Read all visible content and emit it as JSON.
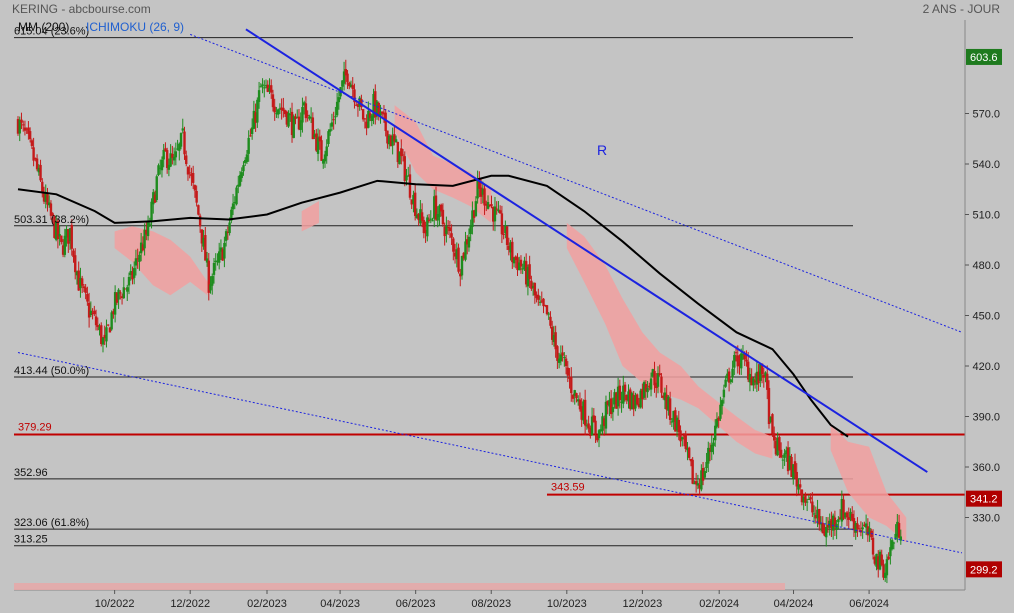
{
  "header": {
    "title": "KERING - abcbourse.com",
    "period": "2 ANS - JOUR",
    "indicator_ma": "MM (200)",
    "indicator_ichimoku": "ICHIMOKU (26, 9)"
  },
  "chart_data": {
    "type": "candlestick",
    "ylim": [
      290,
      625
    ],
    "y_ticks": [
      330,
      360,
      390,
      420,
      450,
      480,
      510,
      540,
      570
    ],
    "y_tick_labels": [
      "330.0",
      "360.0",
      "390.0",
      "420.0",
      "450.0",
      "480.0",
      "510.0",
      "540.0",
      "570.0"
    ],
    "x_labels": [
      "10/2022",
      "12/2022",
      "02/2023",
      "04/2023",
      "06/2023",
      "08/2023",
      "10/2023",
      "12/2023",
      "02/2024",
      "04/2024",
      "06/2024"
    ],
    "annotation_r": "R",
    "fib_levels": [
      {
        "value": 615.04,
        "label": "615.04  (23.6%)"
      },
      {
        "value": 503.31,
        "label": "503.31  (38.2%)"
      },
      {
        "value": 413.44,
        "label": "413.44  (50.0%)"
      },
      {
        "value": 352.96,
        "label": "352.96"
      },
      {
        "value": 323.06,
        "label": "323.06  (61.8%)"
      },
      {
        "value": 313.25,
        "label": "313.25"
      }
    ],
    "red_levels": [
      {
        "value": 379.29,
        "label": "379.29"
      },
      {
        "value": 343.59,
        "label": "343.59"
      }
    ],
    "price_badges": [
      {
        "value": 603.6,
        "label": "603.6",
        "color": "#1e7a1e"
      },
      {
        "value": 341.2,
        "label": "341.2",
        "color": "#b00000"
      },
      {
        "value": 299.2,
        "label": "299.2",
        "color": "#b00000"
      }
    ],
    "close_series": [
      {
        "d": "2022-07-15",
        "v": 565
      },
      {
        "d": "2022-07-22",
        "v": 555
      },
      {
        "d": "2022-07-29",
        "v": 540
      },
      {
        "d": "2022-08-05",
        "v": 520
      },
      {
        "d": "2022-08-12",
        "v": 505
      },
      {
        "d": "2022-08-19",
        "v": 490
      },
      {
        "d": "2022-08-26",
        "v": 500
      },
      {
        "d": "2022-09-02",
        "v": 470
      },
      {
        "d": "2022-09-09",
        "v": 455
      },
      {
        "d": "2022-09-16",
        "v": 445
      },
      {
        "d": "2022-09-23",
        "v": 432
      },
      {
        "d": "2022-09-30",
        "v": 455
      },
      {
        "d": "2022-10-07",
        "v": 465
      },
      {
        "d": "2022-10-14",
        "v": 470
      },
      {
        "d": "2022-10-21",
        "v": 488
      },
      {
        "d": "2022-10-28",
        "v": 500
      },
      {
        "d": "2022-11-04",
        "v": 530
      },
      {
        "d": "2022-11-11",
        "v": 545
      },
      {
        "d": "2022-11-18",
        "v": 540
      },
      {
        "d": "2022-11-25",
        "v": 555
      },
      {
        "d": "2022-12-02",
        "v": 530
      },
      {
        "d": "2022-12-09",
        "v": 505
      },
      {
        "d": "2022-12-16",
        "v": 470
      },
      {
        "d": "2022-12-23",
        "v": 480
      },
      {
        "d": "2022-12-30",
        "v": 495
      },
      {
        "d": "2023-01-06",
        "v": 520
      },
      {
        "d": "2023-01-13",
        "v": 545
      },
      {
        "d": "2023-01-20",
        "v": 560
      },
      {
        "d": "2023-01-27",
        "v": 585
      },
      {
        "d": "2023-02-03",
        "v": 580
      },
      {
        "d": "2023-02-10",
        "v": 575
      },
      {
        "d": "2023-02-17",
        "v": 570
      },
      {
        "d": "2023-02-24",
        "v": 560
      },
      {
        "d": "2023-03-03",
        "v": 575
      },
      {
        "d": "2023-03-10",
        "v": 560
      },
      {
        "d": "2023-03-17",
        "v": 545
      },
      {
        "d": "2023-03-24",
        "v": 560
      },
      {
        "d": "2023-03-31",
        "v": 580
      },
      {
        "d": "2023-04-07",
        "v": 595
      },
      {
        "d": "2023-04-14",
        "v": 580
      },
      {
        "d": "2023-04-21",
        "v": 565
      },
      {
        "d": "2023-04-28",
        "v": 575
      },
      {
        "d": "2023-05-05",
        "v": 565
      },
      {
        "d": "2023-05-12",
        "v": 555
      },
      {
        "d": "2023-05-19",
        "v": 545
      },
      {
        "d": "2023-05-26",
        "v": 530
      },
      {
        "d": "2023-06-02",
        "v": 512
      },
      {
        "d": "2023-06-09",
        "v": 500
      },
      {
        "d": "2023-06-16",
        "v": 515
      },
      {
        "d": "2023-06-23",
        "v": 505
      },
      {
        "d": "2023-06-30",
        "v": 495
      },
      {
        "d": "2023-07-07",
        "v": 480
      },
      {
        "d": "2023-07-14",
        "v": 500
      },
      {
        "d": "2023-07-21",
        "v": 525
      },
      {
        "d": "2023-07-28",
        "v": 520
      },
      {
        "d": "2023-08-04",
        "v": 510
      },
      {
        "d": "2023-08-11",
        "v": 500
      },
      {
        "d": "2023-08-18",
        "v": 485
      },
      {
        "d": "2023-08-25",
        "v": 480
      },
      {
        "d": "2023-09-01",
        "v": 470
      },
      {
        "d": "2023-09-08",
        "v": 455
      },
      {
        "d": "2023-09-15",
        "v": 450
      },
      {
        "d": "2023-09-22",
        "v": 430
      },
      {
        "d": "2023-09-29",
        "v": 420
      },
      {
        "d": "2023-10-06",
        "v": 405
      },
      {
        "d": "2023-10-13",
        "v": 395
      },
      {
        "d": "2023-10-20",
        "v": 385
      },
      {
        "d": "2023-10-27",
        "v": 380
      },
      {
        "d": "2023-11-03",
        "v": 395
      },
      {
        "d": "2023-11-10",
        "v": 400
      },
      {
        "d": "2023-11-17",
        "v": 405
      },
      {
        "d": "2023-11-24",
        "v": 398
      },
      {
        "d": "2023-12-01",
        "v": 405
      },
      {
        "d": "2023-12-08",
        "v": 415
      },
      {
        "d": "2023-12-15",
        "v": 410
      },
      {
        "d": "2023-12-22",
        "v": 395
      },
      {
        "d": "2023-12-29",
        "v": 385
      },
      {
        "d": "2024-01-05",
        "v": 368
      },
      {
        "d": "2024-01-12",
        "v": 350
      },
      {
        "d": "2024-01-19",
        "v": 355
      },
      {
        "d": "2024-01-26",
        "v": 375
      },
      {
        "d": "2024-02-02",
        "v": 395
      },
      {
        "d": "2024-02-09",
        "v": 415
      },
      {
        "d": "2024-02-16",
        "v": 425
      },
      {
        "d": "2024-02-23",
        "v": 420
      },
      {
        "d": "2024-03-01",
        "v": 410
      },
      {
        "d": "2024-03-08",
        "v": 418
      },
      {
        "d": "2024-03-15",
        "v": 375
      },
      {
        "d": "2024-03-22",
        "v": 368
      },
      {
        "d": "2024-03-29",
        "v": 362
      },
      {
        "d": "2024-04-05",
        "v": 350
      },
      {
        "d": "2024-04-12",
        "v": 340
      },
      {
        "d": "2024-04-19",
        "v": 330
      },
      {
        "d": "2024-04-26",
        "v": 322
      },
      {
        "d": "2024-05-03",
        "v": 328
      },
      {
        "d": "2024-05-10",
        "v": 335
      },
      {
        "d": "2024-05-17",
        "v": 330
      },
      {
        "d": "2024-05-24",
        "v": 325
      },
      {
        "d": "2024-05-31",
        "v": 320
      },
      {
        "d": "2024-06-07",
        "v": 305
      },
      {
        "d": "2024-06-14",
        "v": 300
      },
      {
        "d": "2024-06-21",
        "v": 318
      },
      {
        "d": "2024-06-28",
        "v": 327
      }
    ],
    "ma200": [
      {
        "d": "2022-07-15",
        "v": 525
      },
      {
        "d": "2022-08-15",
        "v": 522
      },
      {
        "d": "2022-09-15",
        "v": 512
      },
      {
        "d": "2022-10-01",
        "v": 505
      },
      {
        "d": "2022-11-01",
        "v": 506
      },
      {
        "d": "2022-12-01",
        "v": 508
      },
      {
        "d": "2023-01-01",
        "v": 507
      },
      {
        "d": "2023-02-01",
        "v": 510
      },
      {
        "d": "2023-03-01",
        "v": 517
      },
      {
        "d": "2023-04-01",
        "v": 523
      },
      {
        "d": "2023-05-01",
        "v": 530
      },
      {
        "d": "2023-06-01",
        "v": 528
      },
      {
        "d": "2023-07-01",
        "v": 527
      },
      {
        "d": "2023-08-01",
        "v": 533
      },
      {
        "d": "2023-08-15",
        "v": 533
      },
      {
        "d": "2023-09-15",
        "v": 527
      },
      {
        "d": "2023-10-15",
        "v": 512
      },
      {
        "d": "2023-11-15",
        "v": 494
      },
      {
        "d": "2023-12-15",
        "v": 475
      },
      {
        "d": "2024-01-15",
        "v": 457
      },
      {
        "d": "2024-02-15",
        "v": 440
      },
      {
        "d": "2024-03-15",
        "v": 430
      },
      {
        "d": "2024-04-01",
        "v": 415
      },
      {
        "d": "2024-04-15",
        "v": 400
      },
      {
        "d": "2024-05-01",
        "v": 385
      },
      {
        "d": "2024-05-15",
        "v": 378
      }
    ],
    "cloud": [
      {
        "d": "2022-10-01",
        "hi": 500,
        "lo": 490
      },
      {
        "d": "2022-10-15",
        "hi": 503,
        "lo": 482
      },
      {
        "d": "2022-11-01",
        "hi": 500,
        "lo": 468
      },
      {
        "d": "2022-11-15",
        "hi": 495,
        "lo": 462
      },
      {
        "d": "2022-12-01",
        "hi": 485,
        "lo": 470
      },
      {
        "d": "2022-12-15",
        "hi": 470,
        "lo": 462
      },
      {
        "d": "2023-03-01",
        "hi": 512,
        "lo": 500
      },
      {
        "d": "2023-03-15",
        "hi": 518,
        "lo": 505
      },
      {
        "d": "2023-05-15",
        "hi": 575,
        "lo": 560
      },
      {
        "d": "2023-06-01",
        "hi": 565,
        "lo": 535
      },
      {
        "d": "2023-06-15",
        "hi": 545,
        "lo": 525
      },
      {
        "d": "2023-07-01",
        "hi": 540,
        "lo": 520
      },
      {
        "d": "2023-07-15",
        "hi": 535,
        "lo": 515
      },
      {
        "d": "2023-08-01",
        "hi": 525,
        "lo": 505
      },
      {
        "d": "2023-10-01",
        "hi": 505,
        "lo": 490
      },
      {
        "d": "2023-10-15",
        "hi": 497,
        "lo": 470
      },
      {
        "d": "2023-11-01",
        "hi": 480,
        "lo": 445
      },
      {
        "d": "2023-11-15",
        "hi": 460,
        "lo": 420
      },
      {
        "d": "2023-12-01",
        "hi": 440,
        "lo": 410
      },
      {
        "d": "2023-12-15",
        "hi": 428,
        "lo": 404
      },
      {
        "d": "2024-01-01",
        "hi": 420,
        "lo": 400
      },
      {
        "d": "2024-01-15",
        "hi": 408,
        "lo": 395
      },
      {
        "d": "2024-02-15",
        "hi": 390,
        "lo": 375
      },
      {
        "d": "2024-03-01",
        "hi": 382,
        "lo": 368
      },
      {
        "d": "2024-03-15",
        "hi": 378,
        "lo": 365
      },
      {
        "d": "2024-05-01",
        "hi": 385,
        "lo": 370
      },
      {
        "d": "2024-05-15",
        "hi": 375,
        "lo": 345
      },
      {
        "d": "2024-06-01",
        "hi": 372,
        "lo": 330
      },
      {
        "d": "2024-06-15",
        "hi": 345,
        "lo": 325
      },
      {
        "d": "2024-07-01",
        "hi": 330,
        "lo": 315
      }
    ],
    "trendlines": [
      {
        "name": "descending-resistance",
        "style": "solid-blue",
        "from": {
          "d": "2023-01-15",
          "v": 620
        },
        "to": {
          "d": "2024-07-18",
          "v": 357
        }
      },
      {
        "name": "channel-top",
        "style": "dotted-blue",
        "from": {
          "d": "2022-12-01",
          "v": 617
        },
        "to": {
          "d": "2024-08-15",
          "v": 440
        }
      },
      {
        "name": "channel-bottom",
        "style": "dotted-blue",
        "from": {
          "d": "2022-07-15",
          "v": 428
        },
        "to": {
          "d": "2024-08-15",
          "v": 309
        }
      }
    ],
    "colors": {
      "up": "#1e8c1e",
      "down": "#c41a1a",
      "ma": "#000000",
      "trend": "#1c23e0",
      "cloud": "#f2a0a0",
      "level": "#c00000",
      "fib": "#222222"
    }
  }
}
